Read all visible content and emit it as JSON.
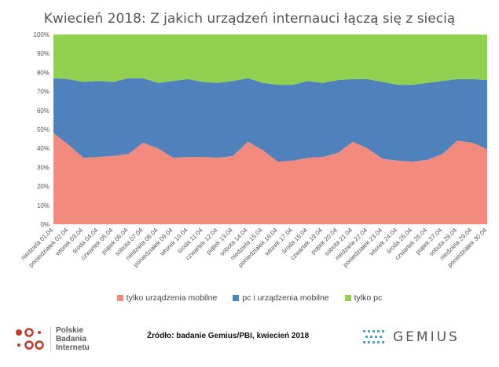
{
  "chart_data": {
    "type": "area",
    "stacked": true,
    "percent": true,
    "title": "Kwiecień 2018: Z jakich urządzeń internauci łączą się z siecią",
    "categories": [
      "niedziela 01.04",
      "poniedziałek 02.04",
      "wtorek 03.04",
      "środa 04.04",
      "czwartek 05.04",
      "piątek 06.04",
      "sobota 07.04",
      "niedziela 08.04",
      "poniedziałek 09.04",
      "wtorek 10.04",
      "środa 11.04",
      "czwartek 12.04",
      "piątek 13.04",
      "sobota 14.04",
      "niedziela 15.04",
      "poniedziałek 16.04",
      "wtorek 17.04",
      "środa 18.04",
      "czwartek 19.04",
      "piątek 20.04",
      "sobota 21.04",
      "niedziela 22.04",
      "poniedziałek 23.04",
      "wtorek 24.04",
      "środa 25.04",
      "czwartek 26.04",
      "piątek 27.04",
      "sobota 28.04",
      "niedziela 29.04",
      "poniedziałek 30.04"
    ],
    "series": [
      {
        "name": "tylko urządzenia mobilne",
        "color": "#f28b7d",
        "values": [
          48,
          42,
          35,
          35.5,
          36,
          37,
          43,
          40,
          35,
          35.5,
          35.5,
          35,
          36,
          43.5,
          39,
          33,
          33.5,
          35,
          35.5,
          37.5,
          43.5,
          40,
          34.5,
          33.5,
          33,
          34,
          37,
          44,
          43,
          39.5
        ]
      },
      {
        "name": "pc i urządzenia mobilne",
        "color": "#4f81bd",
        "values": [
          29,
          34.5,
          40,
          40,
          39,
          40,
          34,
          34.5,
          40.5,
          41,
          39.5,
          39.5,
          39.5,
          33.5,
          35.5,
          40.5,
          40,
          40.5,
          39,
          38.5,
          33,
          36.5,
          40.5,
          40,
          40.5,
          40.5,
          38.5,
          32.5,
          33.5,
          36.5
        ]
      },
      {
        "name": "tylko pc",
        "color": "#92d050",
        "values": [
          23,
          23.5,
          25,
          24.5,
          25,
          23,
          23,
          25.5,
          24.5,
          23.5,
          25,
          25.5,
          24.5,
          23,
          25.5,
          26.5,
          26.5,
          24.5,
          25.5,
          24,
          23.5,
          23.5,
          25,
          26.5,
          26.5,
          25.5,
          24.5,
          23.5,
          23.5,
          24
        ]
      }
    ],
    "yticks": [
      "0%",
      "10%",
      "20%",
      "30%",
      "40%",
      "50%",
      "60%",
      "70%",
      "80%",
      "90%",
      "100%"
    ],
    "ylim": [
      0,
      100
    ]
  },
  "source": "Źródło: badanie Gemius/PBI, kwiecień 2018",
  "pbi_logo": {
    "lines": [
      "Polskie",
      "Badania",
      "Internetu"
    ]
  },
  "gemius_logo": {
    "text": "GEMIUS"
  }
}
